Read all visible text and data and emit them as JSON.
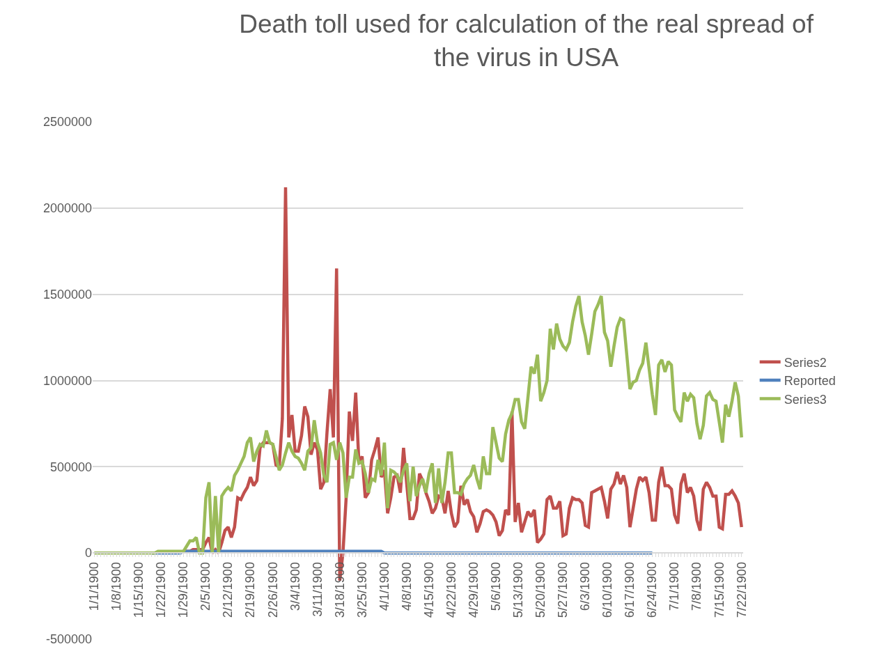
{
  "chart_data": {
    "type": "line",
    "title": "Death toll used for calculation of the real spread of the virus in USA",
    "categories": [
      "1/1/1900",
      null,
      null,
      null,
      null,
      null,
      null,
      "1/8/1900",
      null,
      null,
      null,
      null,
      null,
      null,
      "1/15/1900",
      null,
      null,
      null,
      null,
      null,
      null,
      "1/22/1900",
      null,
      null,
      null,
      null,
      null,
      null,
      "1/29/1900",
      null,
      null,
      null,
      null,
      null,
      null,
      "2/5/1900",
      null,
      null,
      null,
      null,
      null,
      null,
      "2/12/1900",
      null,
      null,
      null,
      null,
      null,
      null,
      "2/19/1900",
      null,
      null,
      null,
      null,
      null,
      null,
      "2/26/1900",
      null,
      null,
      null,
      null,
      null,
      null,
      "3/4/1900",
      null,
      null,
      null,
      null,
      null,
      null,
      "3/11/1900",
      null,
      null,
      null,
      null,
      null,
      null,
      "3/18/1900",
      null,
      null,
      null,
      null,
      null,
      null,
      "3/25/1900",
      null,
      null,
      null,
      null,
      null,
      null,
      "4/1/1900",
      null,
      null,
      null,
      null,
      null,
      null,
      "4/8/1900",
      null,
      null,
      null,
      null,
      null,
      null,
      "4/15/1900",
      null,
      null,
      null,
      null,
      null,
      null,
      "4/22/1900",
      null,
      null,
      null,
      null,
      null,
      null,
      "4/29/1900",
      null,
      null,
      null,
      null,
      null,
      null,
      "5/6/1900",
      null,
      null,
      null,
      null,
      null,
      null,
      "5/13/1900",
      null,
      null,
      null,
      null,
      null,
      null,
      "5/20/1900",
      null,
      null,
      null,
      null,
      null,
      null,
      "5/27/1900",
      null,
      null,
      null,
      null,
      null,
      null,
      "6/3/1900",
      null,
      null,
      null,
      null,
      null,
      null,
      "6/10/1900",
      null,
      null,
      null,
      null,
      null,
      null,
      "6/17/1900",
      null,
      null,
      null,
      null,
      null,
      null,
      "6/24/1900",
      null,
      null,
      null,
      null,
      null,
      null,
      "7/1/1900",
      null,
      null,
      null,
      null,
      null,
      null,
      "7/8/1900",
      null,
      null,
      null,
      null,
      null,
      null,
      "7/15/1900",
      null,
      null,
      null,
      null,
      null,
      null,
      "7/22/1900"
    ],
    "series": [
      {
        "name": "Series2",
        "color": "#c0504d",
        "values": [
          null,
          null,
          null,
          null,
          null,
          null,
          null,
          null,
          null,
          null,
          null,
          null,
          null,
          null,
          null,
          null,
          null,
          null,
          null,
          null,
          null,
          null,
          null,
          null,
          null,
          null,
          null,
          null,
          10000,
          10000,
          10000,
          20000,
          20000,
          20000,
          20000,
          60000,
          90000,
          0,
          20000,
          0,
          60000,
          130000,
          150000,
          90000,
          150000,
          320000,
          310000,
          350000,
          380000,
          440000,
          390000,
          420000,
          610000,
          640000,
          640000,
          640000,
          630000,
          510000,
          500000,
          780000,
          2120000,
          670000,
          800000,
          590000,
          590000,
          680000,
          850000,
          790000,
          570000,
          640000,
          600000,
          370000,
          410000,
          700000,
          950000,
          670000,
          1650000,
          -160000,
          0,
          320000,
          820000,
          650000,
          930000,
          520000,
          560000,
          320000,
          350000,
          540000,
          600000,
          670000,
          440000,
          480000,
          230000,
          320000,
          440000,
          450000,
          350000,
          610000,
          400000,
          200000,
          200000,
          250000,
          460000,
          420000,
          350000,
          300000,
          230000,
          260000,
          330000,
          320000,
          230000,
          360000,
          230000,
          150000,
          180000,
          390000,
          280000,
          310000,
          240000,
          210000,
          120000,
          170000,
          240000,
          250000,
          240000,
          220000,
          180000,
          100000,
          130000,
          250000,
          220000,
          820000,
          180000,
          290000,
          120000,
          180000,
          240000,
          210000,
          250000,
          60000,
          80000,
          110000,
          310000,
          330000,
          260000,
          260000,
          300000,
          100000,
          110000,
          260000,
          320000,
          310000,
          310000,
          290000,
          160000,
          150000,
          350000,
          360000,
          370000,
          380000,
          300000,
          200000,
          370000,
          400000,
          470000,
          400000,
          450000,
          380000,
          150000,
          260000,
          370000,
          440000,
          420000,
          440000,
          350000,
          190000,
          190000,
          410000,
          500000,
          390000,
          390000,
          370000,
          220000,
          170000,
          400000,
          460000,
          350000,
          380000,
          330000,
          190000,
          130000,
          370000,
          410000,
          380000,
          330000,
          330000,
          150000,
          140000,
          340000,
          340000,
          360000,
          330000,
          290000,
          150000
        ]
      },
      {
        "name": "Reported",
        "color": "#4f81bd",
        "values": [
          null,
          null,
          null,
          null,
          null,
          null,
          null,
          null,
          null,
          null,
          null,
          null,
          null,
          null,
          null,
          null,
          null,
          null,
          0,
          0,
          0,
          0,
          0,
          0,
          0,
          0,
          0,
          0,
          10000,
          10000,
          10000,
          10000,
          10000,
          10000,
          10000,
          10000,
          10000,
          10000,
          10000,
          10000,
          10000,
          10000,
          10000,
          10000,
          10000,
          10000,
          10000,
          10000,
          10000,
          10000,
          10000,
          10000,
          10000,
          10000,
          10000,
          10000,
          10000,
          10000,
          10000,
          10000,
          10000,
          10000,
          10000,
          10000,
          10000,
          10000,
          10000,
          10000,
          10000,
          10000,
          10000,
          10000,
          10000,
          10000,
          10000,
          10000,
          10000,
          10000,
          10000,
          10000,
          10000,
          10000,
          10000,
          10000,
          10000,
          10000,
          10000,
          10000,
          10000,
          10000,
          10000,
          0,
          0,
          0,
          0,
          0,
          0,
          0,
          0,
          0,
          0,
          0,
          0,
          0,
          0,
          0,
          0,
          0,
          0,
          0,
          0,
          0,
          0,
          0,
          0,
          0,
          0,
          0,
          0,
          0,
          0,
          0,
          0,
          0,
          0,
          0,
          0,
          0,
          0,
          0,
          0,
          0,
          0,
          0,
          0,
          0,
          0,
          0,
          0,
          0,
          0,
          0,
          0,
          0,
          0,
          0,
          0,
          0,
          0,
          0,
          0,
          0,
          0,
          0,
          0,
          0,
          0,
          0,
          0,
          0,
          0,
          0,
          0,
          0,
          0,
          0,
          0,
          0,
          0,
          0,
          0,
          0,
          0,
          0,
          0,
          0,
          null,
          null,
          null,
          null,
          null,
          null,
          null,
          null,
          null,
          null,
          null,
          null,
          null,
          null,
          null,
          null,
          null,
          null,
          null,
          null,
          null,
          null,
          null,
          null,
          null,
          null,
          null,
          null
        ]
      },
      {
        "name": "Series3",
        "color": "#9bbb59",
        "values": [
          0,
          0,
          0,
          0,
          0,
          0,
          0,
          0,
          0,
          0,
          0,
          0,
          0,
          0,
          0,
          0,
          0,
          0,
          0,
          0,
          10000,
          10000,
          10000,
          10000,
          10000,
          10000,
          10000,
          10000,
          10000,
          40000,
          70000,
          70000,
          90000,
          0,
          0,
          320000,
          410000,
          0,
          330000,
          0,
          330000,
          360000,
          380000,
          360000,
          450000,
          480000,
          520000,
          560000,
          640000,
          670000,
          530000,
          590000,
          630000,
          620000,
          710000,
          640000,
          630000,
          560000,
          480000,
          510000,
          580000,
          640000,
          590000,
          560000,
          550000,
          520000,
          480000,
          590000,
          610000,
          770000,
          640000,
          580000,
          450000,
          410000,
          630000,
          640000,
          540000,
          640000,
          580000,
          320000,
          440000,
          440000,
          600000,
          520000,
          530000,
          460000,
          350000,
          430000,
          420000,
          540000,
          450000,
          640000,
          260000,
          480000,
          470000,
          450000,
          410000,
          480000,
          520000,
          300000,
          500000,
          330000,
          390000,
          430000,
          350000,
          460000,
          520000,
          290000,
          490000,
          290000,
          410000,
          580000,
          580000,
          350000,
          350000,
          340000,
          400000,
          430000,
          450000,
          510000,
          430000,
          370000,
          560000,
          460000,
          460000,
          730000,
          640000,
          550000,
          530000,
          690000,
          770000,
          810000,
          890000,
          890000,
          760000,
          720000,
          900000,
          1080000,
          1040000,
          1150000,
          880000,
          930000,
          1000000,
          1300000,
          1180000,
          1330000,
          1240000,
          1200000,
          1180000,
          1220000,
          1340000,
          1430000,
          1490000,
          1340000,
          1260000,
          1150000,
          1270000,
          1400000,
          1440000,
          1490000,
          1280000,
          1230000,
          1080000,
          1200000,
          1310000,
          1360000,
          1350000,
          1150000,
          950000,
          990000,
          1000000,
          1060000,
          1100000,
          1220000,
          1070000,
          920000,
          800000,
          1090000,
          1120000,
          1050000,
          1110000,
          1090000,
          830000,
          790000,
          760000,
          930000,
          880000,
          920000,
          900000,
          750000,
          660000,
          740000,
          910000,
          930000,
          890000,
          880000,
          760000,
          640000,
          860000,
          790000,
          880000,
          990000,
          910000,
          670000
        ]
      }
    ],
    "ylim": [
      -500000,
      2500000
    ],
    "yticks": [
      -500000,
      0,
      500000,
      1000000,
      1500000,
      2000000,
      2500000
    ],
    "grid": "y",
    "legend": "right",
    "marker": "none",
    "line_style": "solid"
  }
}
